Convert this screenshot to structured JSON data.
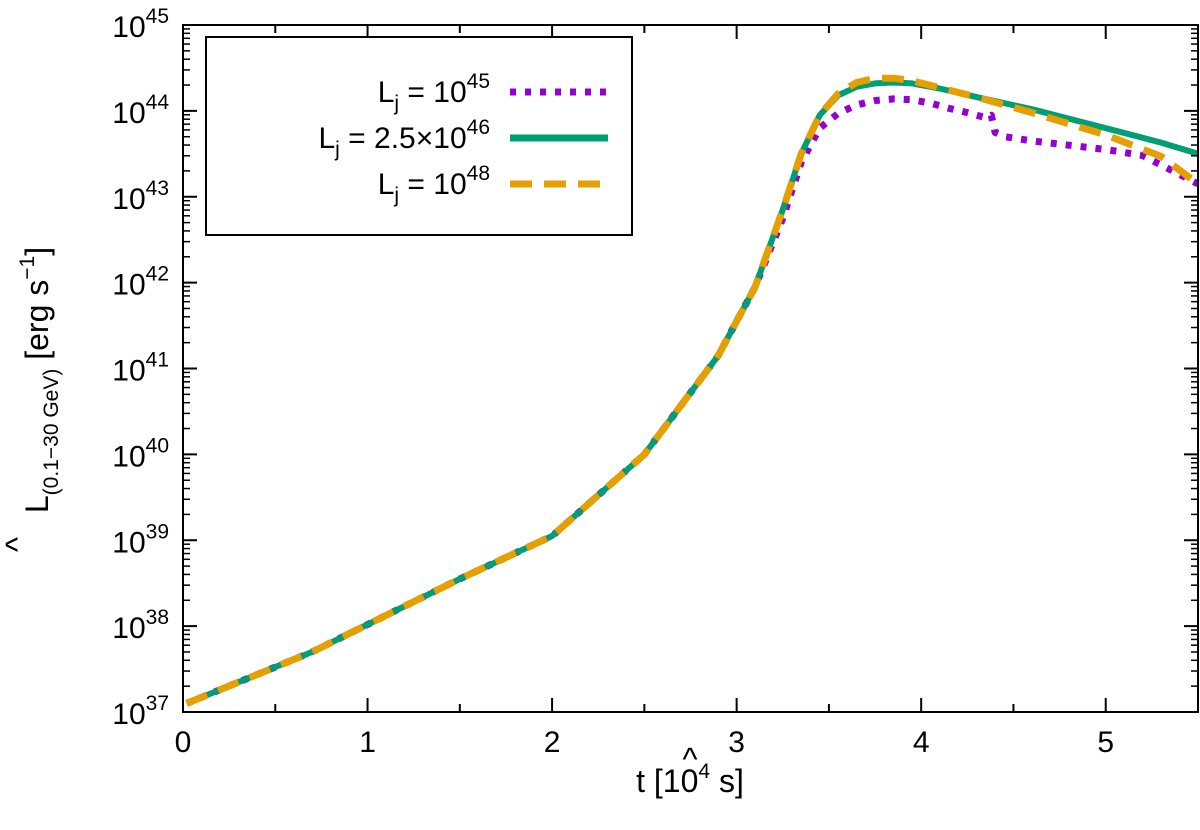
{
  "chart_data": {
    "type": "line",
    "xlabel": {
      "symbol": "t",
      "hat": "^",
      "unit_open": "[10",
      "unit_exp": "4",
      "unit_close": " s]"
    },
    "ylabel": {
      "symbol": "L",
      "hat": "^",
      "subscript": "(0.1−30 GeV)",
      "unit": "[erg s",
      "unit_exp": "−1",
      "unit_close": "]"
    },
    "xlim": [
      0,
      5.5
    ],
    "ylim_log10": [
      37,
      45
    ],
    "yscale": "log",
    "x_ticks": [
      {
        "v": 0,
        "label": "0"
      },
      {
        "v": 1,
        "label": "1"
      },
      {
        "v": 2,
        "label": "2"
      },
      {
        "v": 3,
        "label": "3"
      },
      {
        "v": 4,
        "label": "4"
      },
      {
        "v": 5,
        "label": "5"
      }
    ],
    "x_minor_ticks": [
      0.5,
      1.5,
      2.5,
      3.5,
      4.5
    ],
    "y_ticks": [
      {
        "v": 37,
        "base": "10",
        "exp": "37"
      },
      {
        "v": 38,
        "base": "10",
        "exp": "38"
      },
      {
        "v": 39,
        "base": "10",
        "exp": "39"
      },
      {
        "v": 40,
        "base": "10",
        "exp": "40"
      },
      {
        "v": 41,
        "base": "10",
        "exp": "41"
      },
      {
        "v": 42,
        "base": "10",
        "exp": "42"
      },
      {
        "v": 43,
        "base": "10",
        "exp": "43"
      },
      {
        "v": 44,
        "base": "10",
        "exp": "44"
      },
      {
        "v": 45,
        "base": "10",
        "exp": "45"
      }
    ],
    "legend_position": "top-left",
    "series": [
      {
        "name": "L_j = 10^45",
        "label_main": "L",
        "label_sub": "j",
        "label_mid": " = 10",
        "label_exp": "45",
        "color": "#9400d3",
        "style": "dotted",
        "x": [
          0.02,
          0.7,
          1.5,
          2.0,
          2.5,
          2.9,
          3.1,
          3.25,
          3.35,
          3.45,
          3.55,
          3.65,
          3.75,
          3.85,
          3.95,
          4.05,
          4.15,
          4.25,
          4.35,
          4.38,
          4.4,
          4.45,
          4.6,
          4.8,
          5.0,
          5.2,
          5.5
        ],
        "log10y": [
          37.1,
          37.7,
          38.55,
          39.05,
          40.0,
          41.15,
          41.95,
          42.75,
          43.4,
          43.8,
          43.97,
          44.07,
          44.12,
          44.14,
          44.13,
          44.09,
          44.03,
          43.98,
          43.92,
          43.95,
          43.75,
          43.7,
          43.65,
          43.6,
          43.55,
          43.48,
          43.15
        ]
      },
      {
        "name": "L_j = 2.5×10^46",
        "label_main": "L",
        "label_sub": "j",
        "label_mid": " = 2.5×10",
        "label_exp": "46",
        "color": "#009e73",
        "style": "solid",
        "x": [
          0.02,
          0.7,
          1.5,
          2.0,
          2.5,
          2.9,
          3.1,
          3.25,
          3.35,
          3.45,
          3.55,
          3.65,
          3.75,
          3.85,
          3.95,
          4.1,
          4.3,
          4.6,
          5.0,
          5.3,
          5.5
        ],
        "log10y": [
          37.1,
          37.7,
          38.55,
          39.05,
          40.0,
          41.15,
          41.95,
          42.85,
          43.5,
          43.95,
          44.18,
          44.28,
          44.32,
          44.33,
          44.32,
          44.26,
          44.16,
          44.02,
          43.8,
          43.63,
          43.5
        ]
      },
      {
        "name": "L_j = 10^48",
        "label_main": "L",
        "label_sub": "j",
        "label_mid": " = 10",
        "label_exp": "48",
        "color": "#e69f00",
        "style": "dashed",
        "x": [
          0.02,
          0.7,
          1.5,
          2.0,
          2.5,
          2.9,
          3.1,
          3.25,
          3.35,
          3.45,
          3.55,
          3.65,
          3.75,
          3.85,
          3.95,
          4.1,
          4.3,
          4.6,
          5.0,
          5.3,
          5.5
        ],
        "log10y": [
          37.1,
          37.7,
          38.55,
          39.05,
          40.0,
          41.15,
          41.95,
          42.85,
          43.5,
          43.95,
          44.2,
          44.33,
          44.38,
          44.38,
          44.35,
          44.27,
          44.16,
          43.98,
          43.72,
          43.47,
          43.15
        ]
      }
    ]
  }
}
